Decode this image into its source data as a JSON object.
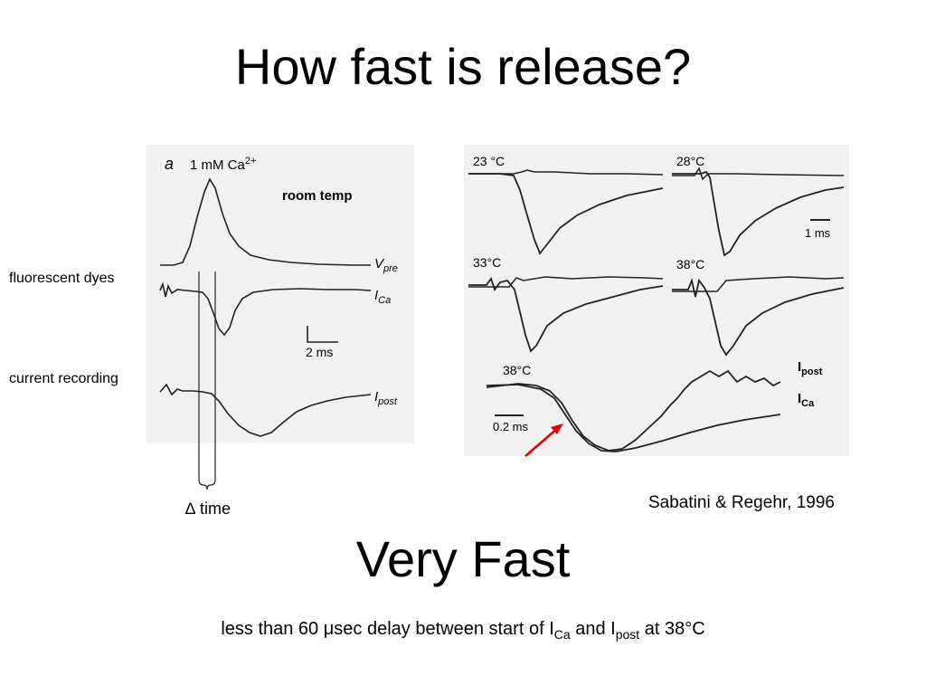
{
  "slide": {
    "title": "How fast is release?",
    "subtitle": "Very Fast",
    "footer_pre": "less than 60 ",
    "footer_mu": "μ",
    "footer_mid": "sec delay between start of I",
    "footer_ca": "Ca",
    "footer_and": " and I",
    "footer_post": "post",
    "footer_end": " at 38°C",
    "citation": "Sabatini & Regehr, 1996"
  },
  "left_figure": {
    "panel_letter": "a",
    "condition": "1 mM Ca",
    "condition_sup": "2+",
    "room_temp": "room temp",
    "label_fluor": "fluorescent dyes",
    "label_current": "current recording",
    "trace_vpre": "V",
    "trace_vpre_sub": "pre",
    "trace_ica": "I",
    "trace_ica_sub": "Ca",
    "trace_ipost": "I",
    "trace_ipost_sub": "post",
    "scale": "2 ms",
    "delta_symbol": "∆",
    "delta_text": " time"
  },
  "right_figure": {
    "temps": [
      "23 °C",
      "28°C",
      "33°C",
      "38°C",
      "38°C"
    ],
    "scale_top": "1 ms",
    "scale_bottom": "0.2 ms",
    "label_ipost": "I",
    "label_ipost_sub": "post",
    "label_ica": "I",
    "label_ica_sub": "Ca",
    "arrow_color": "#e00000"
  }
}
